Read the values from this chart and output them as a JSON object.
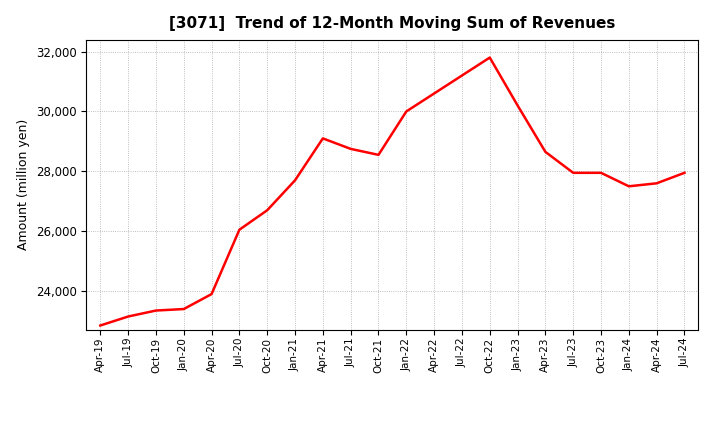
{
  "title": "[3071]  Trend of 12-Month Moving Sum of Revenues",
  "ylabel": "Amount (million yen)",
  "line_color": "#FF0000",
  "line_width": 1.8,
  "background_color": "#FFFFFF",
  "grid_color": "#AAAAAA",
  "ylim": [
    22700,
    32400
  ],
  "yticks": [
    24000,
    26000,
    28000,
    30000,
    32000
  ],
  "dates": [
    "Apr-19",
    "Jul-19",
    "Oct-19",
    "Jan-20",
    "Apr-20",
    "Jul-20",
    "Oct-20",
    "Jan-21",
    "Apr-21",
    "Jul-21",
    "Oct-21",
    "Jan-22",
    "Apr-22",
    "Jul-22",
    "Oct-22",
    "Jan-23",
    "Apr-23",
    "Jul-23",
    "Oct-23",
    "Jan-24",
    "Apr-24",
    "Jul-24"
  ],
  "values": [
    22850,
    23150,
    23350,
    23400,
    23900,
    26050,
    26700,
    27700,
    29100,
    28750,
    28550,
    30000,
    30600,
    31200,
    31800,
    30200,
    28650,
    27950,
    27950,
    27500,
    27600,
    27950
  ]
}
